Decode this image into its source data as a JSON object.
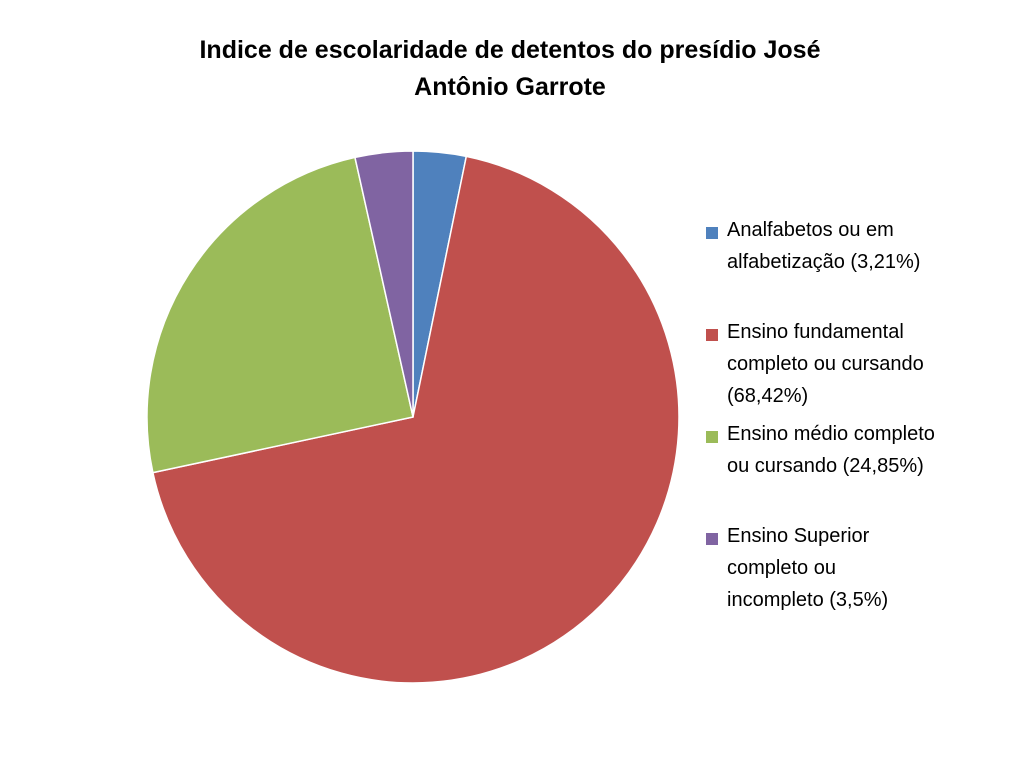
{
  "chart_data": {
    "type": "pie",
    "title": "Indice de escolaridade de detentos do presídio José Antônio Garrote",
    "legend_position": "right",
    "slices": [
      {
        "label": "Analfabetos ou em\nalfabetização (3,21%)",
        "value": 3.21,
        "color": "#4f81bd"
      },
      {
        "label": "Ensino fundamental\ncompleto ou cursando\n(68,42%)",
        "value": 68.42,
        "color": "#c0504d"
      },
      {
        "label": "Ensino médio completo\nou cursando (24,85%)",
        "value": 24.85,
        "color": "#9bbb59"
      },
      {
        "label": "Ensino Superior\ncompleto ou\nincompleto (3,5%)",
        "value": 3.5,
        "color": "#8064a2"
      }
    ]
  }
}
